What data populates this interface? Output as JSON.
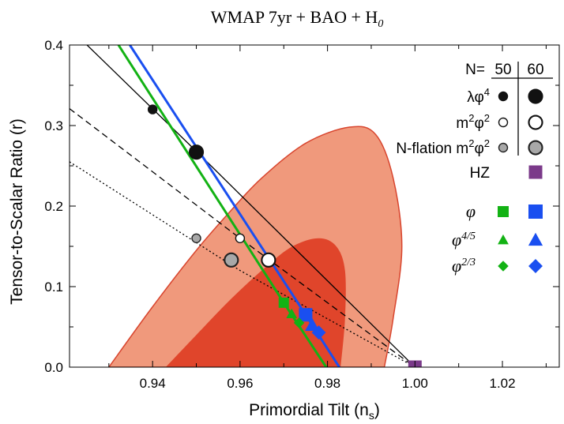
{
  "chart_data": {
    "type": "scatter",
    "title": "WMAP 7yr + BAO + H",
    "title_sub": "0",
    "xlabel": "Primordial Tilt (n",
    "xlabel_sub": "s",
    "xlabel_end": ")",
    "ylabel": "Tensor-to-Scalar Ratio (r)",
    "xlim": [
      0.921,
      1.033
    ],
    "ylim": [
      0.0,
      0.4
    ],
    "x_ticks": [
      "0.94",
      "0.96",
      "0.98",
      "1.00",
      "1.02"
    ],
    "y_ticks": [
      "0.0",
      "0.1",
      "0.2",
      "0.3",
      "0.4"
    ],
    "grid": false,
    "colors": {
      "contour_95": "#f0997c",
      "contour_68": "#e0452b",
      "contour_edge": "#d8452e",
      "green": "#13b214",
      "blue": "#1a4ff0",
      "purple": "#7b3a8a",
      "grey": "#a8a8a8",
      "dark_grey": "#8a8a8a"
    },
    "contours": {
      "outer_95": [
        [
          0.93,
          0.0
        ],
        [
          0.94,
          0.075
        ],
        [
          0.95,
          0.145
        ],
        [
          0.958,
          0.195
        ],
        [
          0.965,
          0.235
        ],
        [
          0.975,
          0.278
        ],
        [
          0.985,
          0.298
        ],
        [
          0.991,
          0.289
        ],
        [
          0.995,
          0.235
        ],
        [
          0.997,
          0.15
        ],
        [
          0.995,
          0.06
        ],
        [
          0.993,
          0.0
        ]
      ],
      "inner_68": [
        [
          0.943,
          0.0
        ],
        [
          0.95,
          0.04
        ],
        [
          0.958,
          0.085
        ],
        [
          0.966,
          0.125
        ],
        [
          0.972,
          0.15
        ],
        [
          0.978,
          0.16
        ],
        [
          0.982,
          0.15
        ],
        [
          0.984,
          0.12
        ],
        [
          0.984,
          0.06
        ],
        [
          0.983,
          0.0
        ]
      ]
    },
    "lines": [
      {
        "style": "solid-thin",
        "color": "#000000",
        "points": [
          [
            0.925,
            0.4
          ],
          [
            0.95,
            0.268
          ],
          [
            1.0,
            0.0
          ]
        ]
      },
      {
        "style": "dashed",
        "color": "#000000",
        "points": [
          [
            0.921,
            0.321
          ],
          [
            0.96,
            0.16
          ],
          [
            1.0,
            0.0
          ]
        ]
      },
      {
        "style": "dotted",
        "color": "#000000",
        "points": [
          [
            0.921,
            0.255
          ],
          [
            0.96,
            0.12
          ],
          [
            1.0,
            0.0
          ]
        ]
      },
      {
        "style": "thick",
        "color": "#13b214",
        "points": [
          [
            0.9322,
            0.4
          ],
          [
            0.97,
            0.08
          ],
          [
            0.9797,
            0.0
          ]
        ]
      },
      {
        "style": "thick",
        "color": "#1a4ff0",
        "points": [
          [
            0.9348,
            0.4
          ],
          [
            0.975,
            0.065
          ],
          [
            0.9827,
            0.0
          ]
        ]
      }
    ],
    "series": [
      {
        "label": "λφ⁴",
        "marker": "circle",
        "fill": "#111111",
        "edge": "#111111",
        "points": [
          {
            "x": 0.94,
            "y": 0.32,
            "N": 50
          },
          {
            "x": 0.95,
            "y": 0.267,
            "N": 60
          }
        ]
      },
      {
        "label": "m²φ²",
        "marker": "circle",
        "fill": "#ffffff",
        "edge": "#111111",
        "points": [
          {
            "x": 0.96,
            "y": 0.16,
            "N": 50
          },
          {
            "x": 0.9665,
            "y": 0.133,
            "N": 60
          }
        ]
      },
      {
        "label": "N-flation m²φ²",
        "marker": "circle",
        "fill": "#a8a8a8",
        "edge": "#222222",
        "points": [
          {
            "x": 0.95,
            "y": 0.16,
            "N": 50
          },
          {
            "x": 0.958,
            "y": 0.133,
            "N": 60
          }
        ]
      },
      {
        "label": "HZ",
        "marker": "square",
        "fill": "#7b3a8a",
        "edge": "#7b3a8a",
        "points": [
          {
            "x": 1.0,
            "y": 0.0
          }
        ]
      },
      {
        "label": "φ",
        "marker": "square",
        "fill": "#13b214",
        "edge": "#13b214",
        "points": [
          {
            "x": 0.97,
            "y": 0.08,
            "N": 50
          }
        ]
      },
      {
        "label": "φ",
        "marker": "square",
        "fill": "#1a4ff0",
        "edge": "#1a4ff0",
        "points": [
          {
            "x": 0.975,
            "y": 0.065,
            "N": 60
          }
        ]
      },
      {
        "label": "φ⁴ᐟ⁵",
        "marker": "triangle",
        "fill": "#13b214",
        "edge": "#13b214",
        "points": [
          {
            "x": 0.9718,
            "y": 0.066,
            "N": 50
          }
        ]
      },
      {
        "label": "φ⁴ᐟ⁵",
        "marker": "triangle",
        "fill": "#1a4ff0",
        "edge": "#1a4ff0",
        "points": [
          {
            "x": 0.9765,
            "y": 0.052,
            "N": 60
          }
        ]
      },
      {
        "label": "φ²ᐟ³",
        "marker": "diamond",
        "fill": "#13b214",
        "edge": "#13b214",
        "points": [
          {
            "x": 0.9735,
            "y": 0.055,
            "N": 50
          }
        ]
      },
      {
        "label": "φ²ᐟ³",
        "marker": "diamond",
        "fill": "#1a4ff0",
        "edge": "#1a4ff0",
        "points": [
          {
            "x": 0.978,
            "y": 0.043,
            "N": 60
          }
        ]
      }
    ],
    "legend": {
      "placement": "top-right",
      "header": "N=",
      "header_50": "50",
      "header_60": "60",
      "rows": [
        {
          "text": "λφ",
          "sup": "4",
          "marker": "circle",
          "fill": "#111111",
          "edge": "#111111",
          "style": "sans"
        },
        {
          "text": "m",
          "sup": "2",
          "text2": "φ",
          "sup2": "2",
          "marker": "circle",
          "fill": "#ffffff",
          "edge": "#111111",
          "style": "sans"
        },
        {
          "text": "N-flation m",
          "sup": "2",
          "text2": "φ",
          "sup2": "2",
          "marker": "circle",
          "fill": "#a8a8a8",
          "edge": "#222222",
          "style": "sans"
        },
        {
          "text": "HZ",
          "marker": "square",
          "fill": "#7b3a8a",
          "edge": "#7b3a8a",
          "style": "sans",
          "single": true
        },
        {
          "text": "φ",
          "marker": "square",
          "fill50": "#13b214",
          "fill60": "#1a4ff0",
          "style": "serif"
        },
        {
          "text": "φ",
          "sup": "4/5",
          "marker": "triangle",
          "fill50": "#13b214",
          "fill60": "#1a4ff0",
          "style": "serif"
        },
        {
          "text": "φ",
          "sup": "2/3",
          "marker": "diamond",
          "fill50": "#13b214",
          "fill60": "#1a4ff0",
          "style": "serif"
        }
      ]
    }
  }
}
